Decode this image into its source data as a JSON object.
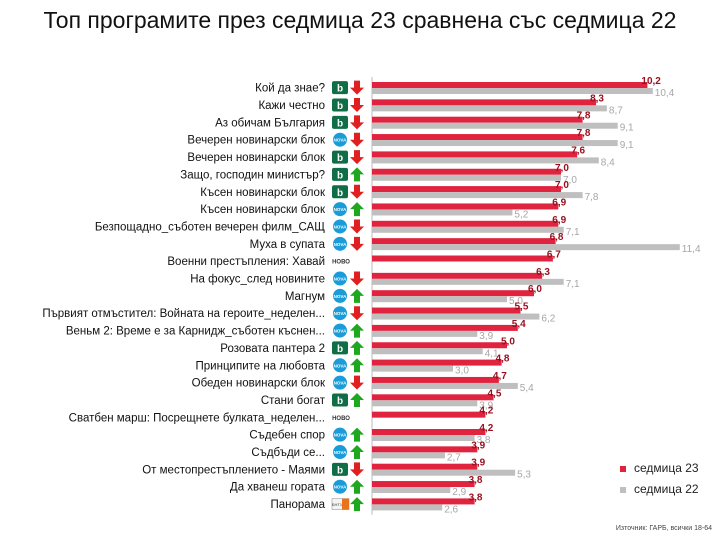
{
  "title": "Топ програмите през седмица 23 сравнена със седмица 22",
  "source": "Източник: ГАРБ, всички 18-64",
  "colors": {
    "current": "#e0233e",
    "previous": "#bfbfbf",
    "up": "#1fa81f",
    "down": "#e02020"
  },
  "channel_labels": {
    "btv": "b",
    "nova": "NOVA",
    "novo": "НОВО",
    "bnt": "БНТ1"
  },
  "chart_data": {
    "type": "bar",
    "orientation": "horizontal",
    "title": "Топ програмите през седмица 23 сравнена със седмица 22",
    "categories": [
      "Кой да знае?",
      "Кажи честно",
      "Аз обичам България",
      "Вечерен новинарски блок",
      "Вечерен новинарски блок",
      "Защо, господин министър?",
      "Късен новинарски блок",
      "Късен новинарски блок",
      "Безпощадно_съботен вечерен филм_САЩ",
      "Муха в супата",
      "Военни престъпления: Хавай",
      "На фокус_след новините",
      "Магнум",
      "Първият отмъстител: Войната на героите_неделен...",
      "Веньм 2: Време е за Карнидж_съботен къснен...",
      "Розовата пантера 2",
      "Принципите на любовта",
      "Обеден новинарски блок",
      "Стани богат",
      "Сватбен марш: Посрещнете булката_неделен...",
      "Съдебен спор",
      "Съдбъди се...",
      "От местопрестъплението - Маями",
      "Да хванеш гората",
      "Панорама"
    ],
    "channels": [
      "btv",
      "btv",
      "btv",
      "nova",
      "btv",
      "btv",
      "btv",
      "nova",
      "nova",
      "nova",
      "novo",
      "nova",
      "nova",
      "nova",
      "nova",
      "btv",
      "nova",
      "nova",
      "btv",
      "novo",
      "nova",
      "nova",
      "btv",
      "nova",
      "bnt"
    ],
    "trend": [
      "down",
      "down",
      "down",
      "down",
      "down",
      "up",
      "down",
      "up",
      "down",
      "down",
      "none",
      "down",
      "up",
      "down",
      "up",
      "up",
      "up",
      "down",
      "up",
      "none",
      "up",
      "up",
      "down",
      "up",
      "up"
    ],
    "series": [
      {
        "name": "седмица 23",
        "values": [
          "10,2",
          "8,3",
          "7,8",
          "7,8",
          "7,6",
          "7,0",
          "7,0",
          "6,9",
          "6,9",
          "6,8",
          "6,7",
          "6,3",
          "6,0",
          "5,5",
          "5,4",
          "5,0",
          "4,8",
          "4,7",
          "4,5",
          "4,2",
          "4,2",
          "3,9",
          "3,9",
          "3,8",
          "3,8"
        ]
      },
      {
        "name": "седмица 22",
        "values": [
          "10,4",
          "8,7",
          "9,1",
          "9,1",
          "8,4",
          "7,0",
          "7,8",
          "5,2",
          "7,1",
          "11,4",
          null,
          "7,1",
          "5,0",
          "6,2",
          "3,9",
          "4,1",
          "3,0",
          "5,4",
          "3,9",
          null,
          "3,8",
          "2,7",
          "5,3",
          "2,9",
          "2,6"
        ]
      }
    ],
    "xlim": [
      0,
      12
    ],
    "legend": "bottom-right"
  }
}
